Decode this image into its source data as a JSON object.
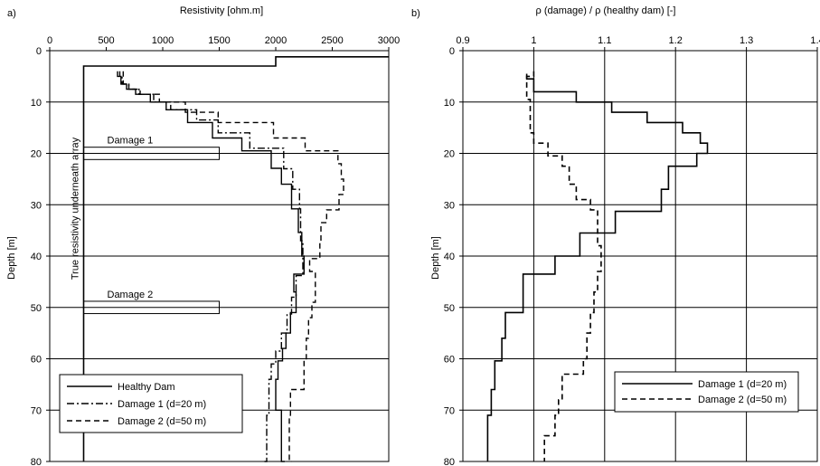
{
  "chart_data": [
    {
      "panel_label": "a)",
      "type": "line",
      "title": "",
      "xlabel": "Resistivity [ohm.m]",
      "ylabel": "Depth [m]",
      "xlim": [
        0,
        3000
      ],
      "ylim": [
        0,
        80
      ],
      "x_axis_position": "top",
      "y_inverted": true,
      "grid": "horizontal",
      "x_ticks": [
        0,
        500,
        1000,
        1500,
        2000,
        2500,
        3000
      ],
      "y_ticks": [
        0,
        10,
        20,
        30,
        40,
        50,
        60,
        70,
        80
      ],
      "annotations": [
        {
          "text": "Damage 1",
          "y_range": [
            18.8,
            21.2
          ],
          "x_range": [
            300,
            1500
          ]
        },
        {
          "text": "Damage 2",
          "y_range": [
            48.8,
            51.2
          ],
          "x_range": [
            300,
            1500
          ]
        },
        {
          "text": "True resistivity underneath array",
          "orientation": "vertical",
          "y_range": [
            3,
            80
          ],
          "x": 300
        }
      ],
      "legend": {
        "placement": "bottom-left"
      },
      "series": [
        {
          "name": "Healthy Dam",
          "style": "solid",
          "points": [
            [
              620,
              4.0
            ],
            [
              630,
              5.0
            ],
            [
              680,
              6.5
            ],
            [
              760,
              7.5
            ],
            [
              890,
              8.5
            ],
            [
              1030,
              10.0
            ],
            [
              1220,
              11.5
            ],
            [
              1440,
              14.0
            ],
            [
              1700,
              17.0
            ],
            [
              1960,
              19.5
            ],
            [
              2050,
              22.9
            ],
            [
              2140,
              26.0
            ],
            [
              2200,
              30.8
            ],
            [
              2230,
              35.4
            ],
            [
              2250,
              40.0
            ],
            [
              2160,
              43.5
            ],
            [
              2180,
              47.0
            ],
            [
              2130,
              51.0
            ],
            [
              2090,
              55.0
            ],
            [
              2060,
              58.0
            ],
            [
              2020,
              60.4
            ],
            [
              2000,
              64.0
            ],
            [
              2050,
              70.0
            ],
            [
              2050,
              75.0
            ],
            [
              2080,
              80.0
            ]
          ]
        },
        {
          "name": "Damage 1 (d=20 m)",
          "style": "dash-dot",
          "points": [
            [
              600,
              4.0
            ],
            [
              640,
              5.0
            ],
            [
              700,
              6.5
            ],
            [
              790,
              7.5
            ],
            [
              920,
              8.5
            ],
            [
              1070,
              10.0
            ],
            [
              1300,
              11.5
            ],
            [
              1490,
              13.5
            ],
            [
              1770,
              16.0
            ],
            [
              2070,
              19.0
            ],
            [
              2150,
              23.0
            ],
            [
              2210,
              27.0
            ],
            [
              2220,
              30.8
            ],
            [
              2240,
              37.0
            ],
            [
              2180,
              43.8
            ],
            [
              2140,
              48.0
            ],
            [
              2100,
              51.3
            ],
            [
              2050,
              55.0
            ],
            [
              2000,
              58.5
            ],
            [
              1960,
              61.0
            ],
            [
              1940,
              64.0
            ],
            [
              1920,
              71.0
            ],
            [
              1900,
              80.0
            ]
          ]
        },
        {
          "name": "Damage 2 (d=50 m)",
          "style": "dashed",
          "points": [
            [
              650,
              4.0
            ],
            [
              650,
              5.0
            ],
            [
              700,
              6.5
            ],
            [
              800,
              7.5
            ],
            [
              970,
              8.5
            ],
            [
              1200,
              10.0
            ],
            [
              1490,
              12.0
            ],
            [
              1980,
              14.0
            ],
            [
              2260,
              17.0
            ],
            [
              2550,
              19.5
            ],
            [
              2580,
              22.0
            ],
            [
              2600,
              25.0
            ],
            [
              2560,
              28.0
            ],
            [
              2450,
              31.0
            ],
            [
              2400,
              33.5
            ],
            [
              2390,
              37.0
            ],
            [
              2300,
              40.5
            ],
            [
              2350,
              43.0
            ],
            [
              2350,
              46.0
            ],
            [
              2320,
              49.0
            ],
            [
              2290,
              52.0
            ],
            [
              2270,
              56.0
            ],
            [
              2250,
              60.0
            ],
            [
              2130,
              66.0
            ],
            [
              2120,
              71.0
            ],
            [
              2140,
              80.0
            ]
          ]
        }
      ],
      "reference_lines": [
        {
          "name": "true resistivity profile",
          "style": "solid",
          "points": [
            [
              300,
              80
            ],
            [
              300,
              3.0
            ],
            [
              2000,
              3.0
            ],
            [
              2000,
              1.2
            ],
            [
              3000,
              1.2
            ]
          ]
        }
      ]
    },
    {
      "panel_label": "b)",
      "type": "line",
      "title": "",
      "xlabel": "ρ (damage) / ρ (healthy dam) [-]",
      "ylabel": "Depth [m]",
      "xlim": [
        0.9,
        1.4
      ],
      "ylim": [
        0,
        80
      ],
      "x_axis_position": "top",
      "y_inverted": true,
      "grid": "both",
      "x_ticks": [
        0.9,
        1.0,
        1.1,
        1.2,
        1.3,
        1.4
      ],
      "x_tick_labels": [
        "0.9",
        "1",
        "1.1",
        "1.2",
        "1.3",
        "1.4"
      ],
      "y_ticks": [
        0,
        10,
        20,
        30,
        40,
        50,
        60,
        70,
        80
      ],
      "legend": {
        "placement": "bottom-right"
      },
      "series": [
        {
          "name": "Damage 1 (d=20 m)",
          "style": "solid",
          "points": [
            [
              0.99,
              4.5
            ],
            [
              1.0,
              5.5
            ],
            [
              1.0,
              6.5
            ],
            [
              1.06,
              8.0
            ],
            [
              1.11,
              10.0
            ],
            [
              1.16,
              12.0
            ],
            [
              1.21,
              14.0
            ],
            [
              1.235,
              16.0
            ],
            [
              1.245,
              18.0
            ],
            [
              1.23,
              20.0
            ],
            [
              1.19,
              22.5
            ],
            [
              1.18,
              27.0
            ],
            [
              1.115,
              31.3
            ],
            [
              1.065,
              35.5
            ],
            [
              1.03,
              40.0
            ],
            [
              0.985,
              43.5
            ],
            [
              0.985,
              48.0
            ],
            [
              0.96,
              51.0
            ],
            [
              0.955,
              56.0
            ],
            [
              0.945,
              60.4
            ],
            [
              0.94,
              66.0
            ],
            [
              0.935,
              71.0
            ],
            [
              0.935,
              80.0
            ]
          ]
        },
        {
          "name": "Damage 2 (d=50 m)",
          "style": "dashed",
          "points": [
            [
              1.0,
              4.0
            ],
            [
              0.99,
              5.0
            ],
            [
              0.99,
              7.0
            ],
            [
              0.995,
              9.5
            ],
            [
              0.995,
              13.0
            ],
            [
              1.0,
              16.0
            ],
            [
              1.02,
              18.0
            ],
            [
              1.04,
              20.5
            ],
            [
              1.05,
              22.5
            ],
            [
              1.06,
              26.0
            ],
            [
              1.08,
              29.0
            ],
            [
              1.09,
              31.0
            ],
            [
              1.095,
              38.0
            ],
            [
              1.09,
              43.0
            ],
            [
              1.085,
              47.0
            ],
            [
              1.08,
              51.0
            ],
            [
              1.075,
              55.0
            ],
            [
              1.07,
              60.0
            ],
            [
              1.04,
              63.0
            ],
            [
              1.035,
              68.0
            ],
            [
              1.03,
              71.0
            ],
            [
              1.015,
              75.0
            ],
            [
              1.015,
              80.0
            ]
          ]
        }
      ]
    }
  ]
}
